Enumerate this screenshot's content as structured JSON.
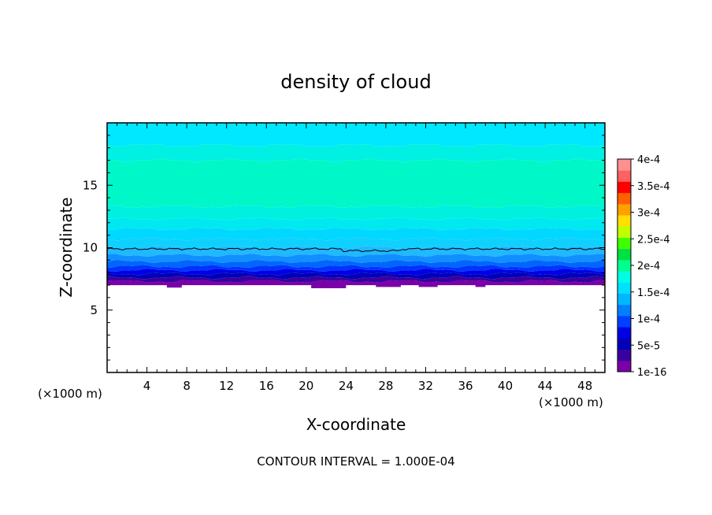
{
  "chart_data": {
    "type": "filled-contour",
    "title": "density of cloud",
    "xlabel": "X-coordinate",
    "ylabel": "Z-coordinate",
    "x_unit": "(×1000 m)",
    "x_unit_right": "(×1000 m)",
    "xlim": [
      0,
      50
    ],
    "ylim": [
      0,
      20
    ],
    "x_ticks": [
      4,
      8,
      12,
      16,
      20,
      24,
      28,
      32,
      36,
      40,
      44,
      48
    ],
    "y_ticks": [
      5,
      10,
      15
    ],
    "contour_interval_text": "CONTOUR INTERVAL = 1.000E-04",
    "colorbar": {
      "labels": [
        "4e-4",
        "3.5e-4",
        "3e-4",
        "2.5e-4",
        "2e-4",
        "1.5e-4",
        "1e-4",
        "5e-5",
        "1e-16"
      ],
      "label_values": [
        0.0004,
        0.00035,
        0.0003,
        0.00025,
        0.0002,
        0.00015,
        0.0001,
        5e-05,
        1e-16
      ],
      "colors": [
        "#7a00a8",
        "#3a00a0",
        "#0000b4",
        "#0000e6",
        "#0040ff",
        "#0080ff",
        "#00b8ff",
        "#00e0ff",
        "#00ffe0",
        "#00ff90",
        "#00e040",
        "#40ff00",
        "#c0ff00",
        "#ffe000",
        "#ffa000",
        "#ff6000",
        "#ff0000",
        "#ff6060",
        "#ff9090"
      ]
    },
    "cloud_layers_z": {
      "z": [
        7.0,
        7.3,
        7.6,
        7.9,
        8.2,
        8.5,
        8.9,
        9.4,
        10.0,
        10.7,
        11.5,
        12.3,
        13.3,
        17.0,
        18.2,
        20.0
      ],
      "colors": [
        "#7a00a8",
        "#3a00a0",
        "#0000b4",
        "#0000e6",
        "#0033ff",
        "#0066ff",
        "#1090ff",
        "#20b8ff",
        "#10d0ff",
        "#00d8ff",
        "#00e8f0",
        "#00f0e0",
        "#00f8c8",
        "#00f0e4",
        "#00e8ff",
        "#00e8ff"
      ]
    },
    "contour_line_z": 9.9,
    "cloud_base_z": 7.1
  }
}
